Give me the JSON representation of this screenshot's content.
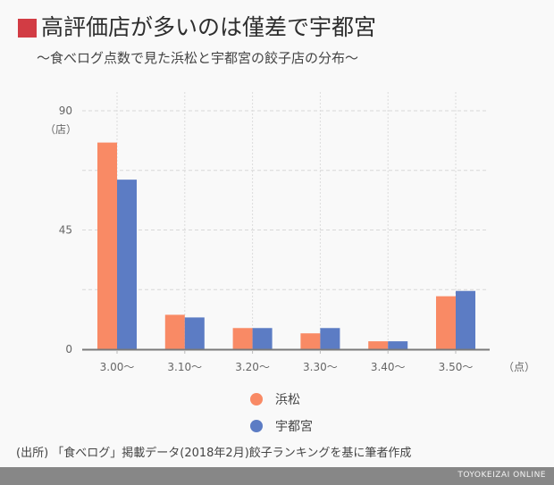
{
  "header": {
    "title": "高評価店が多いのは僅差で宇都宮",
    "subtitle": "〜食べログ点数で見た浜松と宇都宮の餃子店の分布〜",
    "accent_color": "#d23c44"
  },
  "chart_data": {
    "type": "bar",
    "title": "高評価店が多いのは僅差で宇都宮",
    "subtitle": "〜食べログ点数で見た浜松と宇都宮の餃子店の分布〜",
    "categories": [
      "3.00〜",
      "3.10〜",
      "3.20〜",
      "3.30〜",
      "3.40〜",
      "3.50〜"
    ],
    "series": [
      {
        "name": "浜松",
        "color": "#f98a65",
        "values": [
          78,
          13,
          8,
          6,
          3,
          20
        ]
      },
      {
        "name": "宇都宮",
        "color": "#5c7cc4",
        "values": [
          64,
          12,
          8,
          8,
          3,
          22
        ]
      }
    ],
    "xlabel": "（点）",
    "ylabel": "（店）",
    "ylim": [
      0,
      90
    ],
    "yticks": [
      0,
      45,
      90
    ],
    "grid_y": [
      22.5,
      45,
      67.5,
      90
    ],
    "grid": true,
    "legend_position": "bottom-center"
  },
  "legend": [
    {
      "label": "浜松",
      "color": "#f98a65"
    },
    {
      "label": "宇都宮",
      "color": "#5c7cc4"
    }
  ],
  "source": "(出所) 「食べログ」掲載データ(2018年2月)餃子ランキングを基に筆者作成",
  "footer": {
    "brand": "TOYOKEIZAI ONLINE"
  }
}
